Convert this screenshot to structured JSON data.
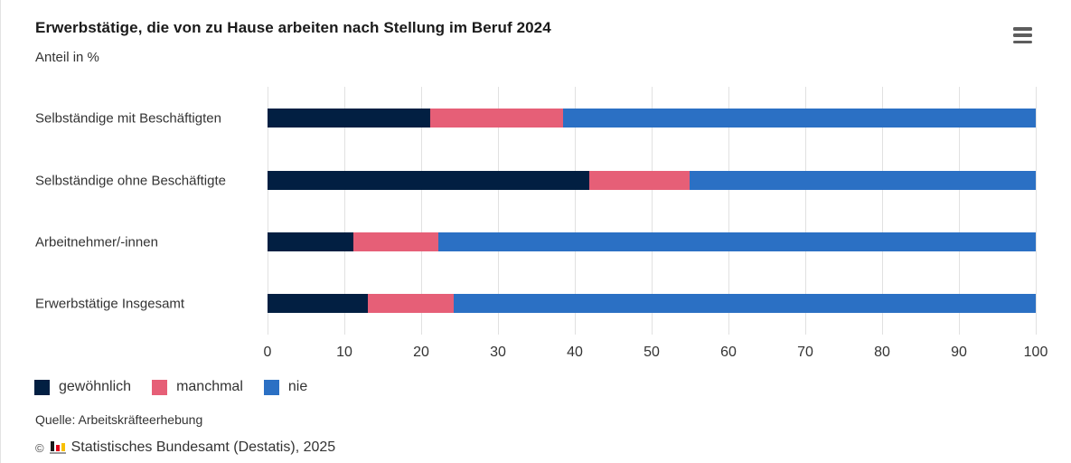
{
  "header": {
    "title": "Erwerbstätige, die von zu Hause arbeiten nach Stellung im Beruf 2024",
    "subtitle": "Anteil in %",
    "menu_icon": "hamburger-menu"
  },
  "chart_data": {
    "type": "bar",
    "orientation": "horizontal",
    "stacked": true,
    "title": "Erwerbstätige, die von zu Hause arbeiten nach Stellung im Beruf 2024",
    "ylabel": "",
    "xlabel": "Anteil in %",
    "categories": [
      "Selbständige mit Beschäftigten",
      "Selbständige ohne Beschäftigte",
      "Arbeitnehmer/-innen",
      "Erwerbstätige Insgesamt"
    ],
    "series": [
      {
        "name": "gewöhnlich",
        "color": "#021F42",
        "values": [
          21.2,
          41.9,
          11.2,
          13.0
        ]
      },
      {
        "name": "manchmal",
        "color": "#E65F77",
        "values": [
          17.3,
          13.1,
          11.0,
          11.2
        ]
      },
      {
        "name": "nie",
        "color": "#2B70C4",
        "values": [
          61.5,
          45.0,
          77.8,
          75.8
        ]
      }
    ],
    "xlim": [
      0,
      100
    ],
    "xticks": [
      0,
      10,
      20,
      30,
      40,
      50,
      60,
      70,
      80,
      90,
      100
    ],
    "grid": "vertical",
    "gridline_color": "#e1e1e1",
    "legend_position": "bottom-left"
  },
  "footer": {
    "source": "Quelle: Arbeitskräfteerhebung",
    "copyright_symbol": "©",
    "copyright_text": "Statistisches Bundesamt (Destatis), 2025",
    "logo_icon": "destatis-bar-chart-logo",
    "logo_colors": [
      "#1a1a1a",
      "#e2001a",
      "#f8c000"
    ]
  }
}
